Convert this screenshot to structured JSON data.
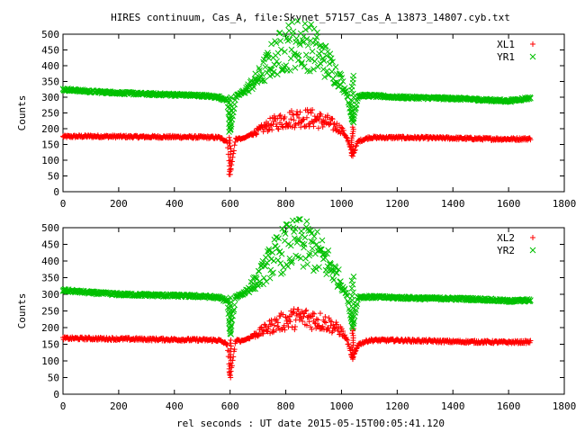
{
  "title": "HIRES continuum, Cas_A, file:Skynet_57157_Cas_A_13873_14807.cyb.txt",
  "xlabel": "rel seconds : UT date 2015-05-15T00:05:41.120",
  "colors": {
    "red": "#ff0000",
    "green": "#00c000"
  },
  "chart_data": [
    {
      "type": "scatter",
      "ylabel": "Counts",
      "xlim": [
        0,
        1800
      ],
      "ylim": [
        0,
        500
      ],
      "xticks": [
        0,
        200,
        400,
        600,
        800,
        1000,
        1200,
        1400,
        1600,
        1800
      ],
      "yticks": [
        0,
        50,
        100,
        150,
        200,
        250,
        300,
        350,
        400,
        450,
        500
      ],
      "legend_position": "top-right",
      "series": [
        {
          "name": "XL1",
          "marker": "plus",
          "color": "#ff0000",
          "x": [
            0,
            100,
            200,
            300,
            400,
            500,
            560,
            590,
            600,
            620,
            650,
            700,
            750,
            800,
            850,
            900,
            950,
            1000,
            1020,
            1040,
            1060,
            1100,
            1200,
            1300,
            1400,
            1500,
            1600,
            1680
          ],
          "y": [
            175,
            176,
            175,
            174,
            174,
            173,
            172,
            160,
            55,
            168,
            170,
            195,
            220,
            235,
            242,
            238,
            225,
            200,
            170,
            115,
            160,
            172,
            172,
            171,
            170,
            168,
            167,
            168
          ]
        },
        {
          "name": "YR1",
          "marker": "cross",
          "color": "#00c000",
          "x": [
            0,
            100,
            200,
            300,
            400,
            500,
            560,
            590,
            600,
            620,
            650,
            700,
            750,
            800,
            850,
            900,
            950,
            1000,
            1020,
            1040,
            1060,
            1100,
            1200,
            1300,
            1400,
            1500,
            1600,
            1680
          ],
          "y": [
            325,
            318,
            314,
            310,
            308,
            305,
            300,
            290,
            190,
            300,
            320,
            365,
            430,
            475,
            490,
            470,
            420,
            355,
            310,
            220,
            305,
            305,
            300,
            298,
            296,
            292,
            288,
            298
          ]
        }
      ]
    },
    {
      "type": "scatter",
      "ylabel": "Counts",
      "xlim": [
        0,
        1800
      ],
      "ylim": [
        0,
        500
      ],
      "xticks": [
        0,
        200,
        400,
        600,
        800,
        1000,
        1200,
        1400,
        1600,
        1800
      ],
      "yticks": [
        0,
        50,
        100,
        150,
        200,
        250,
        300,
        350,
        400,
        450,
        500
      ],
      "legend_position": "top-right",
      "series": [
        {
          "name": "XL2",
          "marker": "plus",
          "color": "#ff0000",
          "x": [
            0,
            100,
            200,
            300,
            400,
            500,
            560,
            590,
            600,
            620,
            650,
            700,
            750,
            800,
            850,
            900,
            950,
            1000,
            1020,
            1040,
            1060,
            1100,
            1200,
            1300,
            1400,
            1500,
            1600,
            1680
          ],
          "y": [
            168,
            167,
            166,
            165,
            164,
            163,
            162,
            150,
            50,
            160,
            162,
            185,
            210,
            228,
            236,
            232,
            218,
            192,
            162,
            105,
            150,
            162,
            162,
            160,
            158,
            157,
            156,
            157
          ]
        },
        {
          "name": "YR2",
          "marker": "cross",
          "color": "#00c000",
          "x": [
            0,
            100,
            200,
            300,
            400,
            500,
            560,
            590,
            600,
            620,
            650,
            700,
            750,
            800,
            850,
            900,
            950,
            1000,
            1020,
            1040,
            1060,
            1100,
            1200,
            1300,
            1400,
            1500,
            1600,
            1680
          ],
          "y": [
            312,
            305,
            300,
            298,
            296,
            294,
            290,
            280,
            180,
            292,
            305,
            350,
            415,
            455,
            468,
            450,
            405,
            340,
            295,
            200,
            292,
            292,
            290,
            288,
            287,
            285,
            280,
            282
          ]
        }
      ]
    }
  ]
}
